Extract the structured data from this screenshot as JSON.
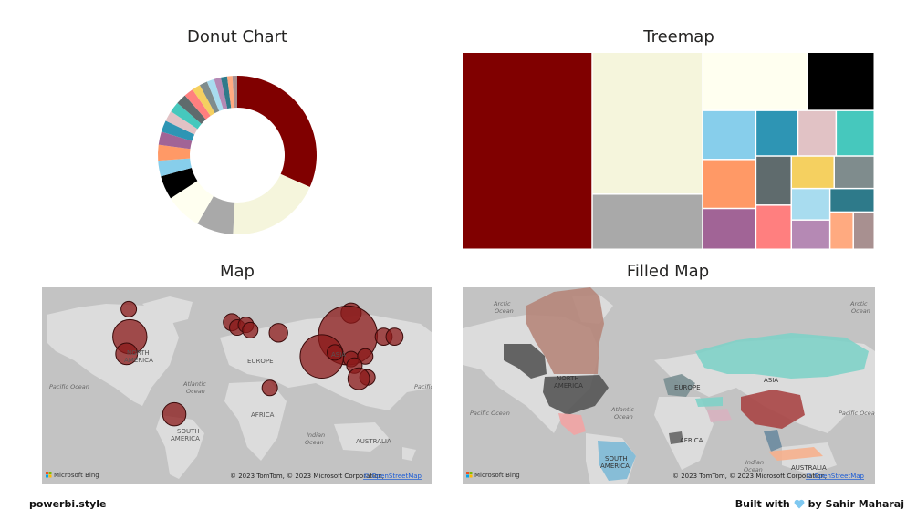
{
  "titles": {
    "donut": "Donut Chart",
    "treemap": "Treemap",
    "map": "Map",
    "filled_map": "Filled Map"
  },
  "footer": {
    "left": "powerbi.style",
    "built_with": "Built with",
    "by": "by Sahir Maharaj"
  },
  "map_labels": {
    "north_america": [
      "NORTH",
      "AMERICA"
    ],
    "south_america": [
      "SOUTH",
      "AMERICA"
    ],
    "europe": "EUROPE",
    "asia": "ASIA",
    "africa": "AFRICA",
    "australia": "AUSTRALIA",
    "pacific": "Pacific Ocean",
    "atlantic": [
      "Atlantic",
      "Ocean"
    ],
    "indian": [
      "Indian",
      "Ocean"
    ],
    "arctic": [
      "Arctic",
      "Ocean"
    ],
    "bing": "Microsoft Bing",
    "copyright": "© 2023 TomTom, © 2023 Microsoft Corporation,",
    "osm": "© OpenStreetMap"
  },
  "colors": {
    "palette": [
      "#800000",
      "#f5f5dc",
      "#a9a9a9",
      "#fffff0",
      "#000000",
      "#87ceeb",
      "#ff9966",
      "#a16496",
      "#2e95b4",
      "#e1c2c5",
      "#46c8bd",
      "#5f6b6d",
      "#ff7f7f",
      "#f5d060",
      "#7f8c8d",
      "#a8dcef",
      "#b589b4",
      "#2e7a8a",
      "#ffaa80",
      "#a89090"
    ],
    "bubble": "#8b1a1a",
    "land": "#dcdcdc",
    "water": "#c3c3c3"
  },
  "chart_data": [
    {
      "type": "pie",
      "variant": "donut",
      "title": "Donut Chart",
      "values": [
        29.5,
        18.0,
        7.0,
        7.0,
        4.5,
        3.0,
        3.0,
        2.5,
        2.2,
        2.0,
        2.0,
        2.0,
        1.8,
        1.6,
        1.5,
        1.4,
        1.3,
        1.2,
        1.0,
        0.9
      ],
      "colors": [
        "#800000",
        "#f5f5dc",
        "#a9a9a9",
        "#fffff0",
        "#000000",
        "#87ceeb",
        "#ff9966",
        "#a16496",
        "#2e95b4",
        "#e1c2c5",
        "#46c8bd",
        "#5f6b6d",
        "#ff7f7f",
        "#f5d060",
        "#7f8c8d",
        "#a8dcef",
        "#b589b4",
        "#2e7a8a",
        "#ffaa80",
        "#a89090"
      ]
    },
    {
      "type": "treemap",
      "title": "Treemap",
      "values": [
        29.5,
        18.0,
        7.0,
        7.0,
        4.5,
        3.0,
        3.0,
        2.5,
        2.2,
        2.0,
        2.0,
        2.0,
        1.8,
        1.6,
        1.5,
        1.4,
        1.3,
        1.2,
        1.0,
        0.9
      ],
      "colors": [
        "#800000",
        "#f5f5dc",
        "#a9a9a9",
        "#fffff0",
        "#000000",
        "#87ceeb",
        "#ff9966",
        "#a16496",
        "#2e95b4",
        "#e1c2c5",
        "#46c8bd",
        "#5f6b6d",
        "#ff7f7f",
        "#f5d060",
        "#7f8c8d",
        "#a8dcef",
        "#b589b4",
        "#2e7a8a",
        "#ffaa80",
        "#a89090"
      ]
    },
    {
      "type": "scatter",
      "variant": "bubble-map",
      "title": "Map",
      "points": [
        {
          "lon": -100,
          "lat": 58,
          "size": 1.0
        },
        {
          "lon": -99,
          "lat": 37,
          "size": 2.2
        },
        {
          "lon": -102,
          "lat": 24,
          "size": 1.4
        },
        {
          "lon": -58,
          "lat": -22,
          "size": 1.5
        },
        {
          "lon": -5,
          "lat": 48,
          "size": 1.1
        },
        {
          "lon": 0,
          "lat": 44,
          "size": 1.0
        },
        {
          "lon": 8,
          "lat": 46,
          "size": 1.0
        },
        {
          "lon": 12,
          "lat": 42,
          "size": 1.0
        },
        {
          "lon": 38,
          "lat": 40,
          "size": 1.2
        },
        {
          "lon": 105,
          "lat": 55,
          "size": 1.3
        },
        {
          "lon": 102,
          "lat": 38,
          "size": 3.8
        },
        {
          "lon": 78,
          "lat": 22,
          "size": 2.8
        },
        {
          "lon": 135,
          "lat": 37,
          "size": 1.1
        },
        {
          "lon": 145,
          "lat": 37,
          "size": 1.1
        },
        {
          "lon": 90,
          "lat": 25,
          "size": 1.0
        },
        {
          "lon": 105,
          "lat": 20,
          "size": 1.0
        },
        {
          "lon": 118,
          "lat": 22,
          "size": 1.0
        },
        {
          "lon": 108,
          "lat": 15,
          "size": 1.0
        },
        {
          "lon": 120,
          "lat": 6,
          "size": 1.0
        },
        {
          "lon": 112,
          "lat": 5,
          "size": 1.4
        },
        {
          "lon": 30,
          "lat": -2,
          "size": 1.0
        }
      ]
    },
    {
      "type": "filled-map",
      "title": "Filled Map",
      "regions": [
        "Canada",
        "Alaska",
        "USA",
        "Mexico",
        "Greenland",
        "Brazil",
        "Russia",
        "China",
        "Southeast Asia",
        "Europe",
        "Turkey",
        "Middle East",
        "Africa"
      ]
    }
  ]
}
